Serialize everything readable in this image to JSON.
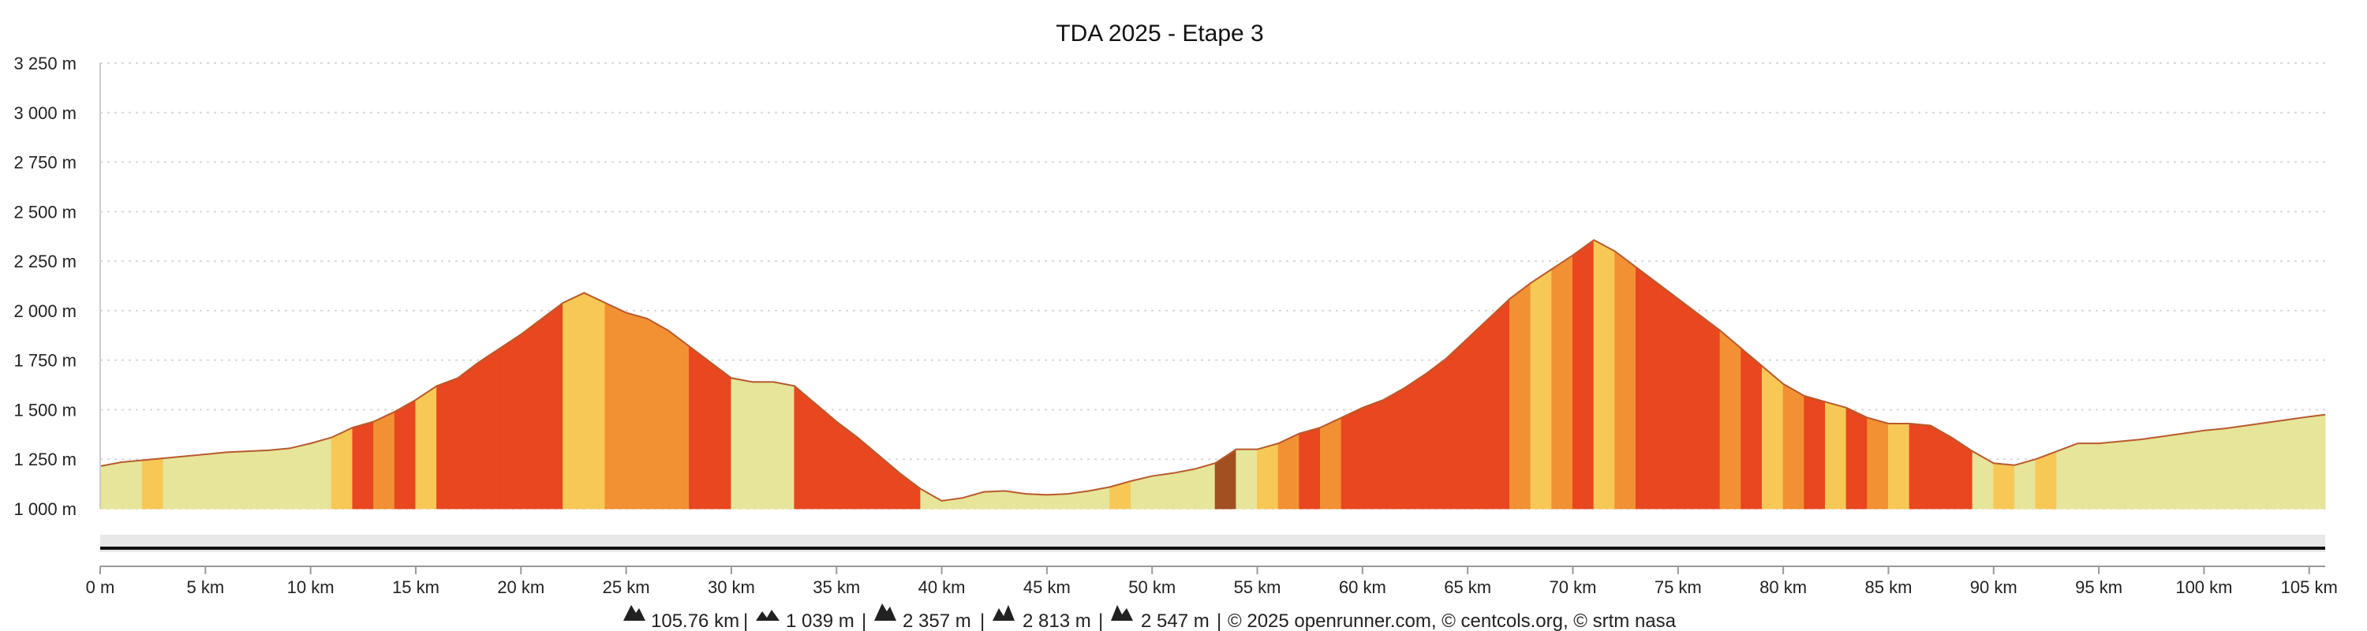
{
  "colors": {
    "grade_flat": "#e6e59a",
    "grade_light": "#f7c856",
    "grade_medium": "#f29134",
    "grade_steep": "#e8471f",
    "grade_very_steep": "#a24f22",
    "profile_line": "#b85a2c",
    "navigator_bg": "#e8e8e8",
    "navigator_line": "#111111"
  },
  "footer": {
    "distance": "105.76 km",
    "min_altitude": "1 039 m",
    "max_altitude": "2 357 m",
    "ascent": "2 813 m",
    "descent": "2 547 m",
    "credits": "© 2025 openrunner.com, © centcols.org, © srtm nasa"
  },
  "chart_data": {
    "type": "area",
    "title": "TDA 2025 - Etape 3",
    "xlabel": "",
    "ylabel": "",
    "x_unit": "km",
    "y_unit": "m",
    "xlim": [
      0,
      105.76
    ],
    "ylim": [
      1000,
      3250
    ],
    "grid": true,
    "yticks": [
      1000,
      1250,
      1500,
      1750,
      2000,
      2250,
      2500,
      2750,
      3000,
      3250
    ],
    "ytick_labels": [
      "1 000 m",
      "1 250 m",
      "1 500 m",
      "1 750 m",
      "2 000 m",
      "2 250 m",
      "2 500 m",
      "2 750 m",
      "3 000 m",
      "3 250 m"
    ],
    "xticks": [
      0,
      5,
      10,
      15,
      20,
      25,
      30,
      35,
      40,
      45,
      50,
      55,
      60,
      65,
      70,
      75,
      80,
      85,
      90,
      95,
      100,
      105
    ],
    "xtick_labels": [
      "0 m",
      "5 km",
      "10 km",
      "15 km",
      "20 km",
      "25 km",
      "30 km",
      "35 km",
      "40 km",
      "45 km",
      "50 km",
      "55 km",
      "60 km",
      "65 km",
      "70 km",
      "75 km",
      "80 km",
      "85 km",
      "90 km",
      "95 km",
      "100 km",
      "105 km"
    ],
    "series": [
      {
        "x": [
          0,
          1,
          2,
          3,
          4,
          5,
          6,
          7,
          8,
          9,
          10,
          11,
          12,
          13,
          14,
          15,
          16,
          17,
          18,
          19,
          20,
          21,
          22,
          23,
          24,
          25,
          26,
          27,
          28,
          29,
          30,
          31,
          32,
          33,
          34,
          35,
          36,
          37,
          38,
          39,
          40,
          41,
          42,
          43,
          44,
          45,
          46,
          47,
          48,
          49,
          50,
          51,
          52,
          53,
          54,
          55,
          56,
          57,
          58,
          59,
          60,
          61,
          62,
          63,
          64,
          65,
          66,
          67,
          68,
          69,
          70,
          71,
          72,
          73,
          74,
          75,
          76,
          77,
          78,
          79,
          80,
          81,
          82,
          83,
          84,
          85,
          86,
          87,
          88,
          89,
          90,
          91,
          92,
          93,
          94,
          95,
          96,
          97,
          98,
          99,
          100,
          101,
          102,
          103,
          104,
          105,
          105.76
        ],
        "y": [
          1215,
          1235,
          1245,
          1255,
          1265,
          1275,
          1285,
          1290,
          1295,
          1305,
          1330,
          1360,
          1410,
          1440,
          1490,
          1550,
          1620,
          1660,
          1740,
          1810,
          1880,
          1960,
          2040,
          2090,
          2040,
          1990,
          1960,
          1900,
          1820,
          1740,
          1660,
          1640,
          1640,
          1620,
          1530,
          1440,
          1360,
          1270,
          1180,
          1100,
          1040,
          1055,
          1085,
          1090,
          1075,
          1070,
          1075,
          1090,
          1110,
          1140,
          1165,
          1180,
          1200,
          1230,
          1300,
          1300,
          1330,
          1380,
          1410,
          1460,
          1510,
          1550,
          1610,
          1680,
          1760,
          1860,
          1960,
          2060,
          2140,
          2210,
          2280,
          2357,
          2300,
          2220,
          2140,
          2060,
          1980,
          1900,
          1810,
          1720,
          1630,
          1570,
          1540,
          1510,
          1460,
          1430,
          1430,
          1420,
          1360,
          1290,
          1230,
          1220,
          1250,
          1290,
          1330,
          1330,
          1340,
          1350,
          1365,
          1380,
          1395,
          1405,
          1420,
          1435,
          1450,
          1465,
          1475
        ],
        "grade_colors": [
          "flat",
          "flat",
          "light",
          "flat",
          "flat",
          "flat",
          "flat",
          "flat",
          "flat",
          "flat",
          "flat",
          "light",
          "steep",
          "medium",
          "steep",
          "light",
          "steep",
          "steep",
          "steep",
          "steep",
          "steep",
          "steep",
          "light",
          "light",
          "medium",
          "medium",
          "medium",
          "medium",
          "steep",
          "steep",
          "flat",
          "flat",
          "flat",
          "steep",
          "steep",
          "steep",
          "steep",
          "steep",
          "steep",
          "flat",
          "flat",
          "flat",
          "flat",
          "flat",
          "flat",
          "flat",
          "flat",
          "flat",
          "light",
          "flat",
          "flat",
          "flat",
          "flat",
          "very_steep",
          "flat",
          "light",
          "medium",
          "steep",
          "medium",
          "steep",
          "steep",
          "steep",
          "steep",
          "steep",
          "steep",
          "steep",
          "steep",
          "medium",
          "light",
          "medium",
          "steep",
          "light",
          "medium",
          "steep",
          "steep",
          "steep",
          "steep",
          "medium",
          "steep",
          "light",
          "medium",
          "steep",
          "light",
          "steep",
          "medium",
          "light",
          "steep",
          "steep",
          "steep",
          "flat",
          "light",
          "flat",
          "light",
          "flat",
          "flat",
          "flat",
          "flat",
          "flat",
          "flat",
          "flat",
          "flat",
          "flat",
          "flat",
          "flat",
          "flat",
          "flat"
        ]
      }
    ]
  }
}
